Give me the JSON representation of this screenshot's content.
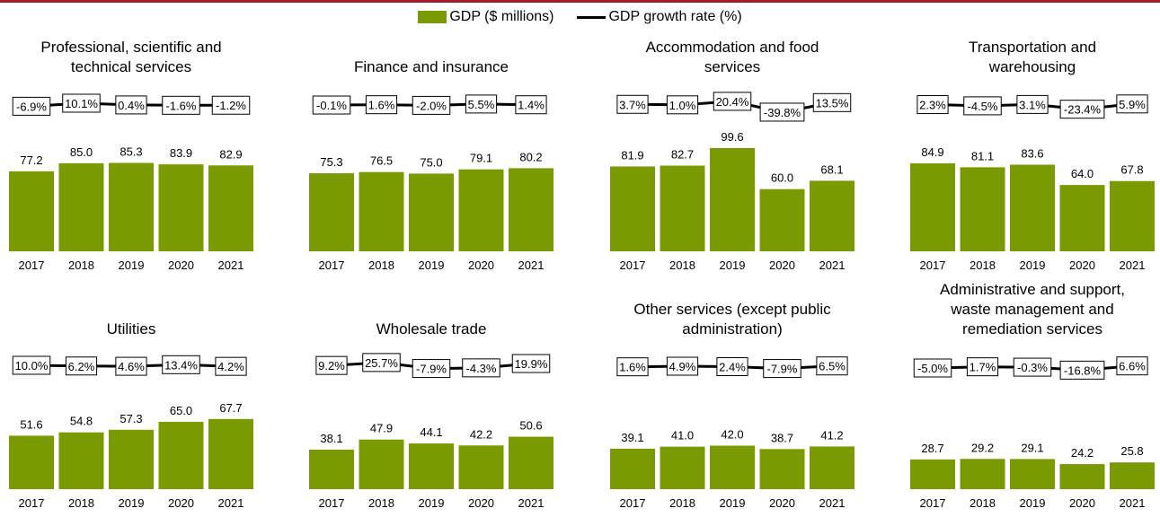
{
  "legend": {
    "bar_label": "GDP ($ millions)",
    "line_label": "GDP growth rate (%)"
  },
  "colors": {
    "bar": "#7a9a01",
    "line": "#000000",
    "top_rule": "#a51d2d"
  },
  "chart_data": [
    {
      "type": "bar",
      "title": [
        "Professional, scientific and",
        "technical services"
      ],
      "categories": [
        "2017",
        "2018",
        "2019",
        "2020",
        "2021"
      ],
      "series": [
        {
          "name": "GDP ($ millions)",
          "values": [
            77.2,
            85.0,
            85.3,
            83.9,
            82.9
          ],
          "labels": [
            "77.2",
            "85.0",
            "85.3",
            "83.9",
            "82.9"
          ]
        },
        {
          "name": "GDP growth rate (%)",
          "values": [
            -6.9,
            10.1,
            0.4,
            -1.6,
            -1.2
          ],
          "labels": [
            "-6.9%",
            "10.1%",
            "0.4%",
            "-1.6%",
            "-1.2%"
          ]
        }
      ]
    },
    {
      "type": "bar",
      "title": [
        "Finance and insurance"
      ],
      "categories": [
        "2017",
        "2018",
        "2019",
        "2020",
        "2021"
      ],
      "series": [
        {
          "name": "GDP ($ millions)",
          "values": [
            75.3,
            76.5,
            75.0,
            79.1,
            80.2
          ],
          "labels": [
            "75.3",
            "76.5",
            "75.0",
            "79.1",
            "80.2"
          ]
        },
        {
          "name": "GDP growth rate (%)",
          "values": [
            -0.1,
            1.6,
            -2.0,
            5.5,
            1.4
          ],
          "labels": [
            "-0.1%",
            "1.6%",
            "-2.0%",
            "5.5%",
            "1.4%"
          ]
        }
      ]
    },
    {
      "type": "bar",
      "title": [
        "Accommodation and food",
        "services"
      ],
      "categories": [
        "2017",
        "2018",
        "2019",
        "2020",
        "2021"
      ],
      "series": [
        {
          "name": "GDP ($ millions)",
          "values": [
            81.9,
            82.7,
            99.6,
            60.0,
            68.1
          ],
          "labels": [
            "81.9",
            "82.7",
            "99.6",
            "60.0",
            "68.1"
          ]
        },
        {
          "name": "GDP growth rate (%)",
          "values": [
            3.7,
            1.0,
            20.4,
            -39.8,
            13.5
          ],
          "labels": [
            "3.7%",
            "1.0%",
            "20.4%",
            "-39.8%",
            "13.5%"
          ]
        }
      ]
    },
    {
      "type": "bar",
      "title": [
        "Transportation and",
        "warehousing"
      ],
      "categories": [
        "2017",
        "2018",
        "2019",
        "2020",
        "2021"
      ],
      "series": [
        {
          "name": "GDP ($ millions)",
          "values": [
            84.9,
            81.1,
            83.6,
            64.0,
            67.8
          ],
          "labels": [
            "84.9",
            "81.1",
            "83.6",
            "64.0",
            "67.8"
          ]
        },
        {
          "name": "GDP growth rate (%)",
          "values": [
            2.3,
            -4.5,
            3.1,
            -23.4,
            5.9
          ],
          "labels": [
            "2.3%",
            "-4.5%",
            "3.1%",
            "-23.4%",
            "5.9%"
          ]
        }
      ]
    },
    {
      "type": "bar",
      "title": [
        "Utilities"
      ],
      "categories": [
        "2017",
        "2018",
        "2019",
        "2020",
        "2021"
      ],
      "series": [
        {
          "name": "GDP ($ millions)",
          "values": [
            51.6,
            54.8,
            57.3,
            65.0,
            67.7
          ],
          "labels": [
            "51.6",
            "54.8",
            "57.3",
            "65.0",
            "67.7"
          ]
        },
        {
          "name": "GDP growth rate (%)",
          "values": [
            10.0,
            6.2,
            4.6,
            13.4,
            4.2
          ],
          "labels": [
            "10.0%",
            "6.2%",
            "4.6%",
            "13.4%",
            "4.2%"
          ]
        }
      ]
    },
    {
      "type": "bar",
      "title": [
        "Wholesale trade"
      ],
      "categories": [
        "2017",
        "2018",
        "2019",
        "2020",
        "2021"
      ],
      "series": [
        {
          "name": "GDP ($ millions)",
          "values": [
            38.1,
            47.9,
            44.1,
            42.2,
            50.6
          ],
          "labels": [
            "38.1",
            "47.9",
            "44.1",
            "42.2",
            "50.6"
          ]
        },
        {
          "name": "GDP growth rate (%)",
          "values": [
            9.2,
            25.7,
            -7.9,
            -4.3,
            19.9
          ],
          "labels": [
            "9.2%",
            "25.7%",
            "-7.9%",
            "-4.3%",
            "19.9%"
          ]
        }
      ]
    },
    {
      "type": "bar",
      "title": [
        "Other services (except public",
        "administration)"
      ],
      "categories": [
        "2017",
        "2018",
        "2019",
        "2020",
        "2021"
      ],
      "series": [
        {
          "name": "GDP ($ millions)",
          "values": [
            39.1,
            41.0,
            42.0,
            38.7,
            41.2
          ],
          "labels": [
            "39.1",
            "41.0",
            "42.0",
            "38.7",
            "41.2"
          ]
        },
        {
          "name": "GDP growth rate (%)",
          "values": [
            1.6,
            4.9,
            2.4,
            -7.9,
            6.5
          ],
          "labels": [
            "1.6%",
            "4.9%",
            "2.4%",
            "-7.9%",
            "6.5%"
          ]
        }
      ]
    },
    {
      "type": "bar",
      "title": [
        "Administrative and support,",
        "waste management and",
        "remediation services"
      ],
      "categories": [
        "2017",
        "2018",
        "2019",
        "2020",
        "2021"
      ],
      "series": [
        {
          "name": "GDP ($ millions)",
          "values": [
            28.7,
            29.2,
            29.1,
            24.2,
            25.8
          ],
          "labels": [
            "28.7",
            "29.2",
            "29.1",
            "24.2",
            "25.8"
          ]
        },
        {
          "name": "GDP growth rate (%)",
          "values": [
            -5.0,
            1.7,
            -0.3,
            -16.8,
            6.6
          ],
          "labels": [
            "-5.0%",
            "1.7%",
            "-0.3%",
            "-16.8%",
            "6.6%"
          ]
        }
      ]
    }
  ]
}
